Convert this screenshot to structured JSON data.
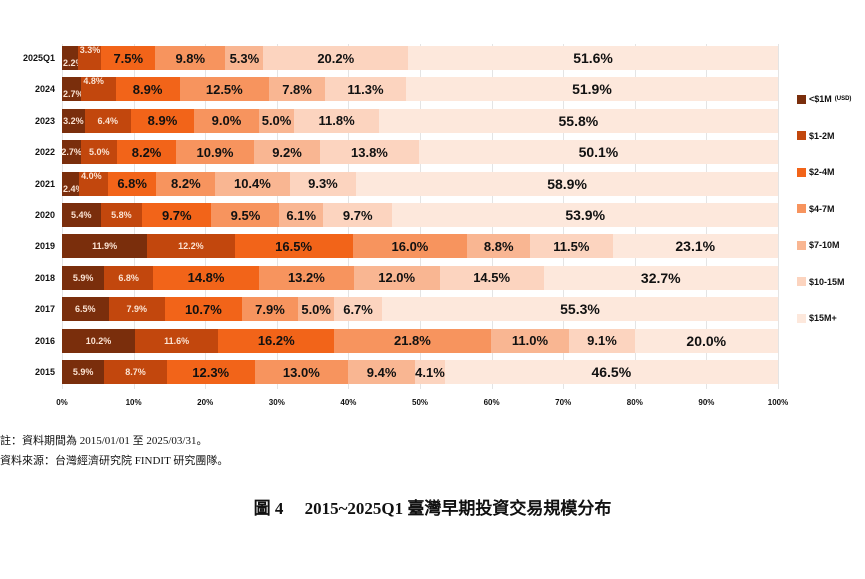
{
  "chart_data": {
    "type": "bar",
    "orientation": "horizontal",
    "stacked": "percent",
    "title": "圖 4　2015~2025Q1 臺灣早期投資交易規模分布",
    "xlabel": "",
    "ylabel": "",
    "xlim": [
      0,
      100
    ],
    "x_ticks": [
      "0%",
      "10%",
      "20%",
      "30%",
      "40%",
      "50%",
      "60%",
      "70%",
      "80%",
      "90%",
      "100%"
    ],
    "grid": true,
    "legend_position": "right",
    "categories": [
      "2025Q1",
      "2024",
      "2023",
      "2022",
      "2021",
      "2020",
      "2019",
      "2018",
      "2017",
      "2016",
      "2015"
    ],
    "series": [
      {
        "name": "<$1M (USD)",
        "color": "#7a2e0c",
        "values": [
          2.2,
          2.7,
          3.2,
          2.7,
          2.4,
          5.4,
          11.9,
          5.9,
          6.5,
          10.2,
          5.9
        ]
      },
      {
        "name": "$1-2M",
        "color": "#c2470d",
        "values": [
          3.3,
          4.8,
          6.4,
          5.0,
          4.0,
          5.8,
          12.2,
          6.8,
          7.9,
          11.6,
          8.7
        ]
      },
      {
        "name": "$2-4M",
        "color": "#f26419",
        "values": [
          7.5,
          8.9,
          8.9,
          8.2,
          6.8,
          9.7,
          16.5,
          14.8,
          10.7,
          16.2,
          12.3
        ]
      },
      {
        "name": "$4-7M",
        "color": "#f7945e",
        "values": [
          9.8,
          12.5,
          9.0,
          10.9,
          8.2,
          9.5,
          16.0,
          13.2,
          7.9,
          21.8,
          13.0
        ]
      },
      {
        "name": "$7-10M",
        "color": "#f9b692",
        "values": [
          5.3,
          7.8,
          5.0,
          9.2,
          10.4,
          6.1,
          8.8,
          12.0,
          5.0,
          11.0,
          9.4
        ]
      },
      {
        "name": "$10-15M",
        "color": "#fcd4bf",
        "values": [
          20.2,
          11.3,
          11.8,
          13.8,
          9.3,
          9.7,
          11.5,
          14.5,
          6.7,
          9.1,
          4.1
        ]
      },
      {
        "name": "$15M+",
        "color": "#fde8dc",
        "values": [
          51.6,
          51.9,
          55.8,
          50.1,
          58.9,
          53.9,
          23.1,
          32.7,
          55.3,
          20.0,
          46.5
        ]
      }
    ]
  },
  "legend": {
    "items": [
      {
        "label": "<$1M",
        "sub": "(USD)"
      },
      {
        "label": "$1-2M",
        "sub": ""
      },
      {
        "label": "$2-4M",
        "sub": ""
      },
      {
        "label": "$4-7M",
        "sub": ""
      },
      {
        "label": "$7-10M",
        "sub": ""
      },
      {
        "label": "$10-15M",
        "sub": ""
      },
      {
        "label": "$15M+",
        "sub": ""
      }
    ]
  },
  "notes": {
    "period": "註：資料期間為 2015/01/01 至 2025/03/31。",
    "source": "資料來源：台灣經濟研究院 FINDIT 研究團隊。"
  },
  "caption": "圖 4　 2015~2025Q1 臺灣早期投資交易規模分布"
}
